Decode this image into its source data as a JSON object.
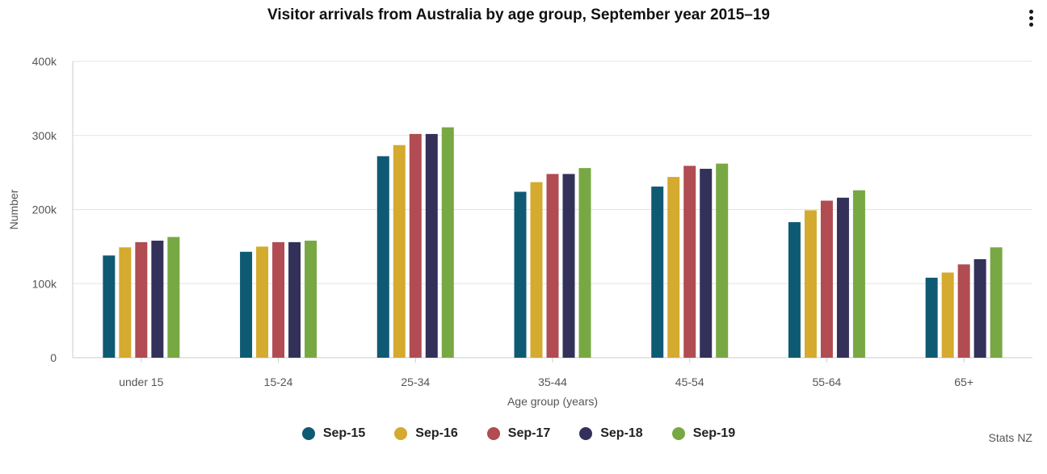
{
  "menu": {
    "icon": "more-vertical-icon"
  },
  "credit": "Stats NZ",
  "chart_data": {
    "type": "bar",
    "title": "Visitor arrivals from Australia by age group, September year 2015–19",
    "xlabel": "Age group (years)",
    "ylabel": "Number",
    "ylim": [
      0,
      400000
    ],
    "yticks": [
      0,
      100000,
      200000,
      300000,
      400000
    ],
    "ytick_labels": [
      "0",
      "100k",
      "200k",
      "300k",
      "400k"
    ],
    "categories": [
      "under 15",
      "15-24",
      "25-34",
      "35-44",
      "45-54",
      "55-64",
      "65+"
    ],
    "grid": true,
    "legend_position": "bottom",
    "series": [
      {
        "name": "Sep-15",
        "color": "#0f5a73",
        "values": [
          138000,
          143000,
          272000,
          224000,
          231000,
          183000,
          108000
        ]
      },
      {
        "name": "Sep-16",
        "color": "#d4aa2f",
        "values": [
          149000,
          150000,
          287000,
          237000,
          244000,
          199000,
          115000
        ]
      },
      {
        "name": "Sep-17",
        "color": "#b04c52",
        "values": [
          156000,
          156000,
          302000,
          248000,
          259000,
          212000,
          126000
        ]
      },
      {
        "name": "Sep-18",
        "color": "#33315a",
        "values": [
          158000,
          156000,
          302000,
          248000,
          255000,
          216000,
          133000
        ]
      },
      {
        "name": "Sep-19",
        "color": "#78a843",
        "values": [
          163000,
          158000,
          311000,
          256000,
          262000,
          226000,
          149000
        ]
      }
    ]
  }
}
